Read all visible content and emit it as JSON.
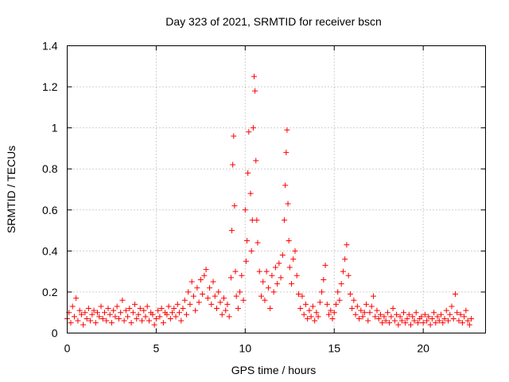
{
  "chart_data": {
    "type": "scatter",
    "title": "Day 323 of 2021, SRMTID for receiver bscn",
    "xlabel": "GPS time / hours",
    "ylabel": "SRMTID / TECUs",
    "xlim": [
      0,
      23.5
    ],
    "ylim": [
      0,
      1.4
    ],
    "xticks": [
      0,
      5,
      10,
      15,
      20
    ],
    "xtick_labels": [
      "0",
      "5",
      "10",
      "15",
      "20"
    ],
    "yticks": [
      0,
      0.2,
      0.4,
      0.6,
      0.8,
      1.0,
      1.2,
      1.4
    ],
    "ytick_labels": [
      "0",
      "0.2",
      "0.4",
      "0.6",
      "0.8",
      "1",
      "1.2",
      "1.4"
    ],
    "grid": true,
    "marker": "+",
    "color": "#ff0000",
    "series": [
      {
        "name": "SRMTID",
        "points": [
          [
            0.0,
            0.07
          ],
          [
            0.1,
            0.1
          ],
          [
            0.2,
            0.05
          ],
          [
            0.3,
            0.13
          ],
          [
            0.4,
            0.08
          ],
          [
            0.5,
            0.17
          ],
          [
            0.6,
            0.06
          ],
          [
            0.7,
            0.11
          ],
          [
            0.8,
            0.09
          ],
          [
            0.9,
            0.04
          ],
          [
            1.0,
            0.1
          ],
          [
            1.1,
            0.07
          ],
          [
            1.2,
            0.12
          ],
          [
            1.3,
            0.06
          ],
          [
            1.4,
            0.09
          ],
          [
            1.5,
            0.11
          ],
          [
            1.6,
            0.05
          ],
          [
            1.7,
            0.1
          ],
          [
            1.8,
            0.08
          ],
          [
            1.9,
            0.13
          ],
          [
            2.0,
            0.07
          ],
          [
            2.1,
            0.1
          ],
          [
            2.2,
            0.06
          ],
          [
            2.3,
            0.12
          ],
          [
            2.4,
            0.09
          ],
          [
            2.5,
            0.05
          ],
          [
            2.6,
            0.11
          ],
          [
            2.7,
            0.08
          ],
          [
            2.8,
            0.13
          ],
          [
            2.9,
            0.07
          ],
          [
            3.0,
            0.1
          ],
          [
            3.1,
            0.16
          ],
          [
            3.2,
            0.06
          ],
          [
            3.3,
            0.11
          ],
          [
            3.4,
            0.08
          ],
          [
            3.5,
            0.12
          ],
          [
            3.6,
            0.05
          ],
          [
            3.7,
            0.1
          ],
          [
            3.8,
            0.14
          ],
          [
            3.9,
            0.07
          ],
          [
            4.0,
            0.09
          ],
          [
            4.1,
            0.12
          ],
          [
            4.2,
            0.06
          ],
          [
            4.3,
            0.11
          ],
          [
            4.4,
            0.08
          ],
          [
            4.5,
            0.13
          ],
          [
            4.6,
            0.06
          ],
          [
            4.7,
            0.1
          ],
          [
            4.8,
            0.09
          ],
          [
            4.9,
            0.04
          ],
          [
            5.0,
            0.07
          ],
          [
            5.1,
            0.11
          ],
          [
            5.2,
            0.08
          ],
          [
            5.3,
            0.12
          ],
          [
            5.4,
            0.05
          ],
          [
            5.5,
            0.1
          ],
          [
            5.6,
            0.09
          ],
          [
            5.7,
            0.13
          ],
          [
            5.8,
            0.07
          ],
          [
            5.9,
            0.1
          ],
          [
            6.0,
            0.12
          ],
          [
            6.1,
            0.08
          ],
          [
            6.2,
            0.14
          ],
          [
            6.3,
            0.1
          ],
          [
            6.4,
            0.06
          ],
          [
            6.5,
            0.12
          ],
          [
            6.6,
            0.16
          ],
          [
            6.7,
            0.09
          ],
          [
            6.8,
            0.2
          ],
          [
            6.9,
            0.14
          ],
          [
            7.0,
            0.25
          ],
          [
            7.1,
            0.18
          ],
          [
            7.2,
            0.11
          ],
          [
            7.3,
            0.22
          ],
          [
            7.4,
            0.15
          ],
          [
            7.5,
            0.26
          ],
          [
            7.6,
            0.19
          ],
          [
            7.7,
            0.28
          ],
          [
            7.8,
            0.31
          ],
          [
            7.9,
            0.17
          ],
          [
            8.0,
            0.22
          ],
          [
            8.1,
            0.14
          ],
          [
            8.2,
            0.25
          ],
          [
            8.3,
            0.18
          ],
          [
            8.4,
            0.12
          ],
          [
            8.5,
            0.2
          ],
          [
            8.6,
            0.15
          ],
          [
            8.7,
            0.09
          ],
          [
            8.8,
            0.17
          ],
          [
            8.9,
            0.11
          ],
          [
            9.0,
            0.14
          ],
          [
            9.1,
            0.08
          ],
          [
            9.2,
            0.27
          ],
          [
            9.25,
            0.5
          ],
          [
            9.3,
            0.82
          ],
          [
            9.35,
            0.96
          ],
          [
            9.4,
            0.62
          ],
          [
            9.45,
            0.3
          ],
          [
            9.5,
            0.18
          ],
          [
            9.6,
            0.12
          ],
          [
            9.7,
            0.2
          ],
          [
            9.8,
            0.28
          ],
          [
            9.9,
            0.16
          ],
          [
            10.0,
            0.6
          ],
          [
            10.05,
            0.35
          ],
          [
            10.1,
            0.45
          ],
          [
            10.15,
            0.78
          ],
          [
            10.2,
            0.98
          ],
          [
            10.3,
            0.68
          ],
          [
            10.35,
            0.4
          ],
          [
            10.4,
            0.55
          ],
          [
            10.45,
            1.0
          ],
          [
            10.5,
            1.25
          ],
          [
            10.55,
            1.18
          ],
          [
            10.6,
            0.84
          ],
          [
            10.65,
            0.55
          ],
          [
            10.7,
            0.44
          ],
          [
            10.8,
            0.3
          ],
          [
            10.9,
            0.18
          ],
          [
            11.0,
            0.25
          ],
          [
            11.1,
            0.16
          ],
          [
            11.2,
            0.3
          ],
          [
            11.3,
            0.22
          ],
          [
            11.4,
            0.12
          ],
          [
            11.5,
            0.28
          ],
          [
            11.6,
            0.2
          ],
          [
            11.7,
            0.32
          ],
          [
            11.8,
            0.24
          ],
          [
            11.9,
            0.34
          ],
          [
            12.0,
            0.27
          ],
          [
            12.1,
            0.38
          ],
          [
            12.2,
            0.55
          ],
          [
            12.25,
            0.72
          ],
          [
            12.3,
            0.88
          ],
          [
            12.35,
            0.99
          ],
          [
            12.4,
            0.63
          ],
          [
            12.45,
            0.45
          ],
          [
            12.5,
            0.32
          ],
          [
            12.6,
            0.24
          ],
          [
            12.7,
            0.36
          ],
          [
            12.8,
            0.4
          ],
          [
            12.9,
            0.28
          ],
          [
            13.0,
            0.19
          ],
          [
            13.1,
            0.12
          ],
          [
            13.2,
            0.18
          ],
          [
            13.3,
            0.09
          ],
          [
            13.4,
            0.14
          ],
          [
            13.5,
            0.07
          ],
          [
            13.6,
            0.11
          ],
          [
            13.7,
            0.08
          ],
          [
            13.8,
            0.13
          ],
          [
            13.9,
            0.06
          ],
          [
            14.0,
            0.1
          ],
          [
            14.1,
            0.08
          ],
          [
            14.2,
            0.15
          ],
          [
            14.3,
            0.2
          ],
          [
            14.4,
            0.26
          ],
          [
            14.5,
            0.33
          ],
          [
            14.6,
            0.14
          ],
          [
            14.7,
            0.09
          ],
          [
            14.8,
            0.11
          ],
          [
            14.9,
            0.07
          ],
          [
            15.0,
            0.1
          ],
          [
            15.1,
            0.14
          ],
          [
            15.2,
            0.2
          ],
          [
            15.3,
            0.16
          ],
          [
            15.4,
            0.24
          ],
          [
            15.5,
            0.3
          ],
          [
            15.6,
            0.36
          ],
          [
            15.7,
            0.43
          ],
          [
            15.8,
            0.28
          ],
          [
            15.9,
            0.19
          ],
          [
            16.0,
            0.12
          ],
          [
            16.1,
            0.16
          ],
          [
            16.2,
            0.09
          ],
          [
            16.3,
            0.13
          ],
          [
            16.4,
            0.07
          ],
          [
            16.5,
            0.11
          ],
          [
            16.6,
            0.08
          ],
          [
            16.7,
            0.1
          ],
          [
            16.8,
            0.14
          ],
          [
            16.9,
            0.06
          ],
          [
            17.0,
            0.1
          ],
          [
            17.1,
            0.13
          ],
          [
            17.2,
            0.18
          ],
          [
            17.3,
            0.08
          ],
          [
            17.4,
            0.11
          ],
          [
            17.5,
            0.07
          ],
          [
            17.6,
            0.09
          ],
          [
            17.7,
            0.05
          ],
          [
            17.8,
            0.08
          ],
          [
            17.9,
            0.06
          ],
          [
            18.0,
            0.1
          ],
          [
            18.1,
            0.05
          ],
          [
            18.2,
            0.08
          ],
          [
            18.3,
            0.12
          ],
          [
            18.4,
            0.06
          ],
          [
            18.5,
            0.09
          ],
          [
            18.6,
            0.04
          ],
          [
            18.7,
            0.08
          ],
          [
            18.8,
            0.06
          ],
          [
            18.9,
            0.1
          ],
          [
            19.0,
            0.05
          ],
          [
            19.1,
            0.07
          ],
          [
            19.2,
            0.09
          ],
          [
            19.3,
            0.04
          ],
          [
            19.4,
            0.08
          ],
          [
            19.5,
            0.06
          ],
          [
            19.6,
            0.1
          ],
          [
            19.7,
            0.05
          ],
          [
            19.8,
            0.07
          ],
          [
            19.9,
            0.08
          ],
          [
            20.0,
            0.05
          ],
          [
            20.1,
            0.09
          ],
          [
            20.2,
            0.06
          ],
          [
            20.3,
            0.08
          ],
          [
            20.4,
            0.04
          ],
          [
            20.5,
            0.07
          ],
          [
            20.6,
            0.1
          ],
          [
            20.7,
            0.05
          ],
          [
            20.8,
            0.08
          ],
          [
            20.9,
            0.06
          ],
          [
            21.0,
            0.09
          ],
          [
            21.1,
            0.05
          ],
          [
            21.2,
            0.07
          ],
          [
            21.3,
            0.11
          ],
          [
            21.4,
            0.06
          ],
          [
            21.5,
            0.09
          ],
          [
            21.6,
            0.13
          ],
          [
            21.7,
            0.07
          ],
          [
            21.8,
            0.19
          ],
          [
            21.9,
            0.1
          ],
          [
            22.0,
            0.06
          ],
          [
            22.1,
            0.09
          ],
          [
            22.2,
            0.05
          ],
          [
            22.3,
            0.08
          ],
          [
            22.4,
            0.11
          ],
          [
            22.5,
            0.06
          ],
          [
            22.6,
            0.04
          ],
          [
            22.7,
            0.07
          ]
        ]
      }
    ]
  }
}
